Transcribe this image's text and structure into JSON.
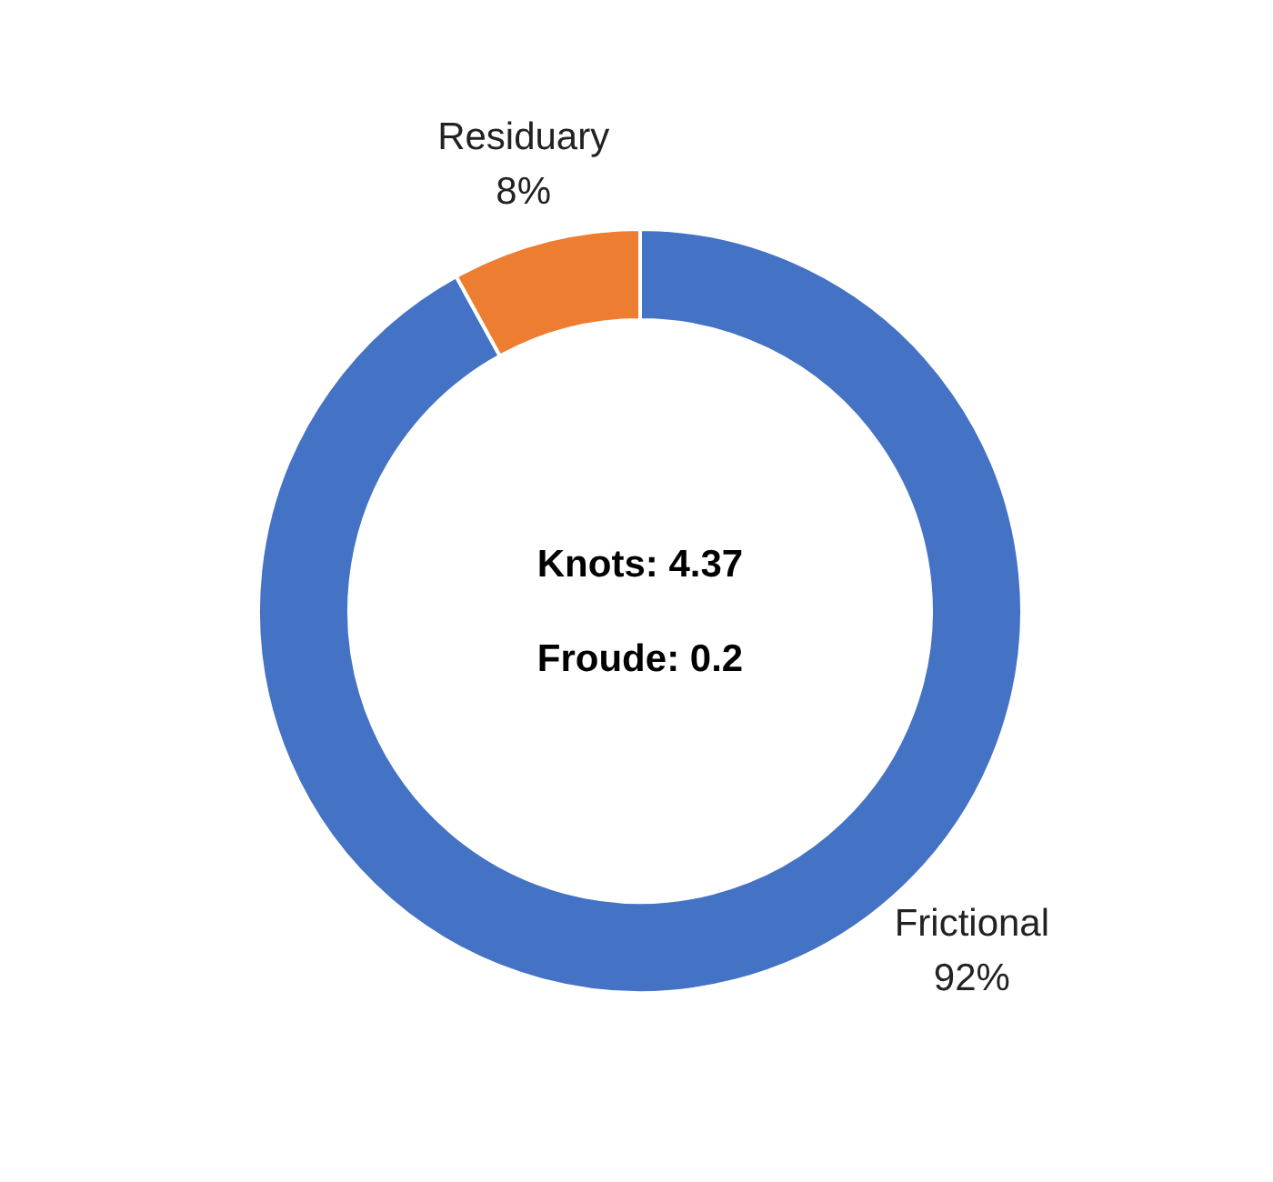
{
  "chart_data": {
    "type": "donut",
    "categories": [
      "Frictional",
      "Residuary"
    ],
    "values": [
      92,
      8
    ],
    "colors": [
      "#4472c4",
      "#ed7d31"
    ],
    "value_labels": [
      "92%",
      "8%"
    ],
    "annotations": [
      "Knots: 4.37",
      "Froude: 0.2"
    ]
  }
}
